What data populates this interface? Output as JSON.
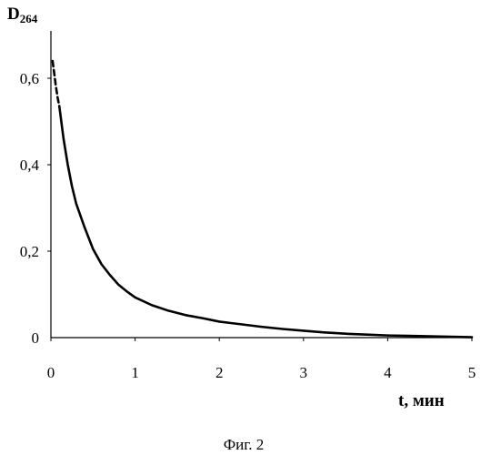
{
  "chart_data": {
    "type": "line",
    "ylabel": {
      "main": "D",
      "sub": "264"
    },
    "xlabel": "t, мин",
    "caption": "Фиг. 2",
    "xlim": [
      0,
      5
    ],
    "ylim": [
      0,
      0.6
    ],
    "x_ticks": [
      "0",
      "1",
      "2",
      "3",
      "4",
      "5"
    ],
    "y_ticks": [
      "0",
      "0,2",
      "0,4",
      "0,6"
    ],
    "x_tick_values": [
      0,
      1,
      2,
      3,
      4,
      5
    ],
    "y_tick_values": [
      0,
      0.2,
      0.4,
      0.6
    ],
    "grid": false,
    "series": [
      {
        "segments": [
          {
            "style": "dashed",
            "x": [
              0.02,
              0.04,
              0.06,
              0.08,
              0.1
            ],
            "y": [
              0.64,
              0.61,
              0.58,
              0.555,
              0.535
            ]
          },
          {
            "style": "solid",
            "x": [
              0.1,
              0.15,
              0.2,
              0.25,
              0.3,
              0.4,
              0.5,
              0.6,
              0.7,
              0.8,
              0.9,
              1.0,
              1.2,
              1.4,
              1.6,
              1.8,
              2.0,
              2.25,
              2.5,
              2.75,
              3.0,
              3.25,
              3.5,
              3.75,
              4.0,
              4.25,
              4.5,
              4.75,
              5.0
            ],
            "y": [
              0.535,
              0.46,
              0.4,
              0.35,
              0.31,
              0.255,
              0.205,
              0.17,
              0.145,
              0.123,
              0.107,
              0.093,
              0.075,
              0.062,
              0.052,
              0.045,
              0.037,
              0.031,
              0.025,
              0.02,
              0.016,
              0.012,
              0.009,
              0.007,
              0.005,
              0.004,
              0.003,
              0.002,
              0.001
            ]
          }
        ]
      }
    ]
  }
}
